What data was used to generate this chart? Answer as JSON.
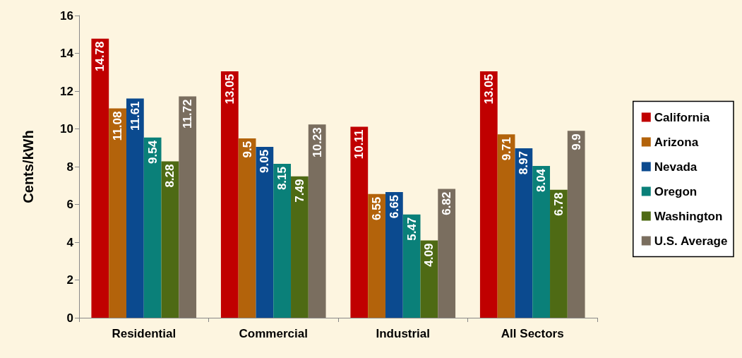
{
  "chart_data": {
    "type": "bar",
    "ylabel": "Cents/kWh",
    "categories": [
      "Residential",
      "Commercial",
      "Industrial",
      "All Sectors"
    ],
    "series": [
      {
        "name": "California",
        "color": "#c00000",
        "values": [
          14.78,
          13.05,
          10.11,
          13.05
        ]
      },
      {
        "name": "Arizona",
        "color": "#b3630b",
        "values": [
          11.08,
          9.5,
          6.55,
          9.71
        ]
      },
      {
        "name": "Nevada",
        "color": "#0b4a8f",
        "values": [
          11.61,
          9.05,
          6.65,
          8.97
        ]
      },
      {
        "name": "Oregon",
        "color": "#0a8079",
        "values": [
          9.54,
          8.15,
          5.47,
          8.04
        ]
      },
      {
        "name": "Washington",
        "color": "#4e6a14",
        "values": [
          8.28,
          7.49,
          4.09,
          6.78
        ]
      },
      {
        "name": "U.S. Average",
        "color": "#7a6e5f",
        "values": [
          11.72,
          10.23,
          6.82,
          9.9
        ]
      }
    ],
    "ylim": [
      0,
      16
    ],
    "yticks": [
      0,
      2,
      4,
      6,
      8,
      10,
      12,
      14,
      16
    ],
    "grid": false,
    "legend": "right",
    "data_labels": true
  }
}
